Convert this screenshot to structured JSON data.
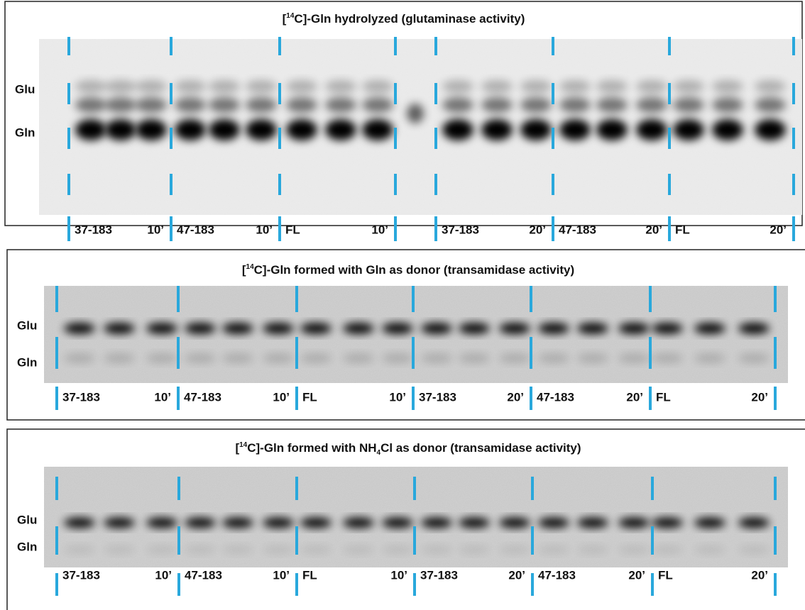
{
  "panels": [
    {
      "title": [
        "[",
        "14",
        "C]-Gln hydrolyzed (glutaminase activity)"
      ],
      "row_labels": [
        "Glu",
        "Gln"
      ],
      "lanes": [
        {
          "sample": "37-183",
          "time": "10’"
        },
        {
          "sample": "47-183",
          "time": "10’"
        },
        {
          "sample": "FL",
          "time": "10’"
        },
        {
          "sample": "37-183",
          "time": "20’"
        },
        {
          "sample": "47-183",
          "time": "20’"
        },
        {
          "sample": "FL",
          "time": "20’"
        }
      ]
    },
    {
      "title": [
        "[",
        "14",
        "C]-Gln formed with Gln as donor (transamidase activity)"
      ],
      "row_labels": [
        "Glu",
        "Gln"
      ],
      "lanes": [
        {
          "sample": "37-183",
          "time": "10’"
        },
        {
          "sample": "47-183",
          "time": "10’"
        },
        {
          "sample": "FL",
          "time": "10’"
        },
        {
          "sample": "37-183",
          "time": "20’"
        },
        {
          "sample": "47-183",
          "time": "20’"
        },
        {
          "sample": "FL",
          "time": "20’"
        }
      ]
    },
    {
      "title": [
        "[",
        "14",
        "C]-Gln formed with NH",
        "4",
        "Cl as donor (transamidase activity)"
      ],
      "row_labels": [
        "Glu",
        "Gln"
      ],
      "lanes": [
        {
          "sample": "37-183",
          "time": "10’"
        },
        {
          "sample": "47-183",
          "time": "10’"
        },
        {
          "sample": "FL",
          "time": "10’"
        },
        {
          "sample": "37-183",
          "time": "20’"
        },
        {
          "sample": "47-183",
          "time": "20’"
        },
        {
          "sample": "FL",
          "time": "20’"
        }
      ]
    }
  ]
}
